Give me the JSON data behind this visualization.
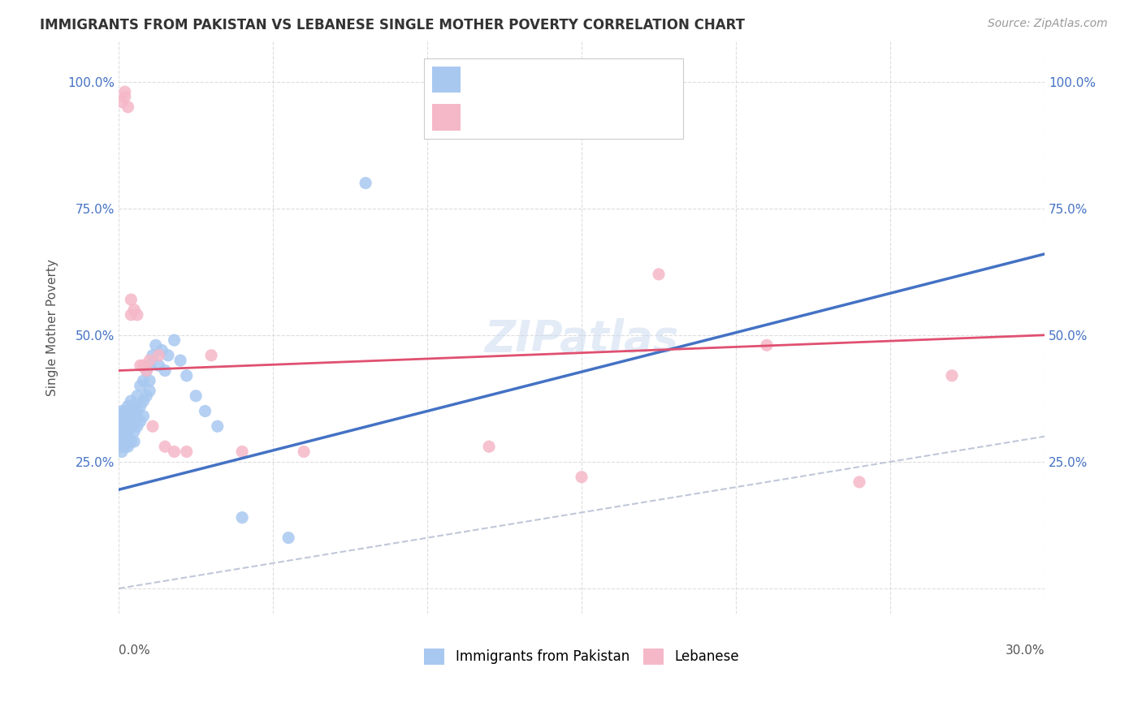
{
  "title": "IMMIGRANTS FROM PAKISTAN VS LEBANESE SINGLE MOTHER POVERTY CORRELATION CHART",
  "source": "Source: ZipAtlas.com",
  "ylabel": "Single Mother Poverty",
  "y_ticks": [
    0.0,
    0.25,
    0.5,
    0.75,
    1.0
  ],
  "y_tick_labels": [
    "",
    "25.0%",
    "50.0%",
    "75.0%",
    "100.0%"
  ],
  "x_range": [
    0.0,
    0.3
  ],
  "y_range": [
    -0.05,
    1.08
  ],
  "label1": "Immigrants from Pakistan",
  "label2": "Lebanese",
  "color1": "#a8c8f0",
  "color2": "#f5b8c8",
  "trendline_color1": "#4472c4",
  "trendline_color2": "#e05070",
  "diag_line_color": "#c0c8d8",
  "background_color": "#ffffff",
  "pakistan_x": [
    0.0,
    0.001,
    0.001,
    0.001,
    0.001,
    0.001,
    0.001,
    0.001,
    0.001,
    0.001,
    0.002,
    0.002,
    0.002,
    0.002,
    0.002,
    0.002,
    0.002,
    0.003,
    0.003,
    0.003,
    0.003,
    0.003,
    0.003,
    0.004,
    0.004,
    0.004,
    0.004,
    0.004,
    0.005,
    0.005,
    0.005,
    0.005,
    0.006,
    0.006,
    0.006,
    0.007,
    0.007,
    0.007,
    0.008,
    0.008,
    0.008,
    0.009,
    0.009,
    0.01,
    0.01,
    0.01,
    0.011,
    0.012,
    0.013,
    0.014,
    0.015,
    0.016,
    0.018,
    0.02,
    0.022,
    0.025,
    0.028,
    0.032,
    0.04,
    0.055,
    0.08
  ],
  "pakistan_y": [
    0.31,
    0.29,
    0.27,
    0.32,
    0.3,
    0.34,
    0.33,
    0.28,
    0.35,
    0.31,
    0.3,
    0.33,
    0.28,
    0.35,
    0.31,
    0.29,
    0.32,
    0.33,
    0.3,
    0.36,
    0.28,
    0.31,
    0.34,
    0.32,
    0.35,
    0.29,
    0.33,
    0.37,
    0.31,
    0.34,
    0.29,
    0.36,
    0.35,
    0.32,
    0.38,
    0.36,
    0.33,
    0.4,
    0.37,
    0.34,
    0.41,
    0.38,
    0.43,
    0.39,
    0.44,
    0.41,
    0.46,
    0.48,
    0.44,
    0.47,
    0.43,
    0.46,
    0.49,
    0.45,
    0.42,
    0.38,
    0.35,
    0.32,
    0.14,
    0.1,
    0.8
  ],
  "lebanese_x": [
    0.001,
    0.002,
    0.002,
    0.003,
    0.004,
    0.004,
    0.005,
    0.006,
    0.007,
    0.008,
    0.009,
    0.01,
    0.011,
    0.013,
    0.015,
    0.018,
    0.022,
    0.03,
    0.04,
    0.06,
    0.12,
    0.15,
    0.175,
    0.21,
    0.24,
    0.27
  ],
  "lebanese_y": [
    0.96,
    0.97,
    0.98,
    0.95,
    0.57,
    0.54,
    0.55,
    0.54,
    0.44,
    0.44,
    0.43,
    0.45,
    0.32,
    0.46,
    0.28,
    0.27,
    0.27,
    0.46,
    0.27,
    0.27,
    0.28,
    0.22,
    0.62,
    0.48,
    0.21,
    0.42
  ]
}
